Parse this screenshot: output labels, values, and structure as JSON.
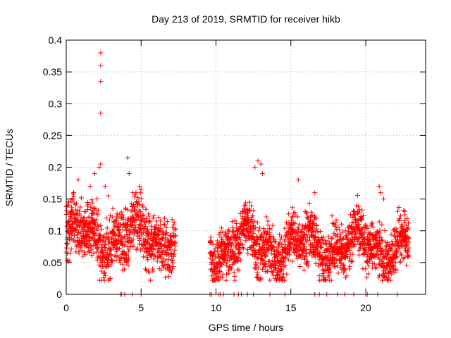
{
  "chart_data": {
    "type": "scatter",
    "title": "Day 213 of 2019, SRMTID for receiver hikb",
    "xlabel": "GPS time / hours",
    "ylabel": "SRMTID / TECUs",
    "xlim": [
      0,
      24
    ],
    "ylim": [
      0,
      0.4
    ],
    "x_ticks": [
      0,
      5,
      10,
      15,
      20
    ],
    "x_tick_labels": [
      "0",
      "5",
      "10",
      "15",
      "20"
    ],
    "y_ticks": [
      0,
      0.05,
      0.1,
      0.15,
      0.2,
      0.25,
      0.3,
      0.35,
      0.4
    ],
    "y_tick_labels": [
      "0",
      "0.05",
      "0.1",
      "0.15",
      "0.2",
      "0.25",
      "0.3",
      "0.35",
      "0.4"
    ],
    "grid": true,
    "marker": "+",
    "color": "#ff0000",
    "segments": [
      {
        "x_start": 0.0,
        "x_end": 7.3,
        "y_level": 0.09,
        "spread": 0.045,
        "step": 0.012
      },
      {
        "x_start": 9.6,
        "x_end": 22.9,
        "y_level": 0.075,
        "spread": 0.04,
        "step": 0.012
      }
    ],
    "series": [
      {
        "name": "SRMTID",
        "x": [
          0.1,
          0.3,
          0.5,
          0.8,
          1.2,
          1.6,
          1.9,
          2.2,
          2.3,
          2.3,
          2.3,
          2.3,
          2.3,
          2.6,
          2.8,
          4.1,
          4.2,
          4.9,
          5.0,
          12.6,
          12.8,
          13.0,
          13.1,
          15.5,
          16.6,
          20.9,
          21.0,
          21.2
        ],
        "y": [
          0.14,
          0.12,
          0.16,
          0.18,
          0.13,
          0.17,
          0.19,
          0.2,
          0.285,
          0.335,
          0.36,
          0.38,
          0.205,
          0.17,
          0.155,
          0.215,
          0.19,
          0.17,
          0.165,
          0.2,
          0.21,
          0.205,
          0.19,
          0.18,
          0.16,
          0.17,
          0.16,
          0.15
        ]
      }
    ],
    "zero_points_x": [
      3.6,
      3.7,
      3.9,
      4.4,
      5.0,
      9.6,
      9.7,
      10.2,
      10.3,
      10.5,
      11.2,
      11.5,
      11.7,
      12.1,
      12.5,
      13.6,
      14.6,
      16.6,
      16.9,
      17.4,
      18.1,
      18.6,
      19.2,
      20.0,
      20.1,
      20.8,
      22.1
    ]
  }
}
